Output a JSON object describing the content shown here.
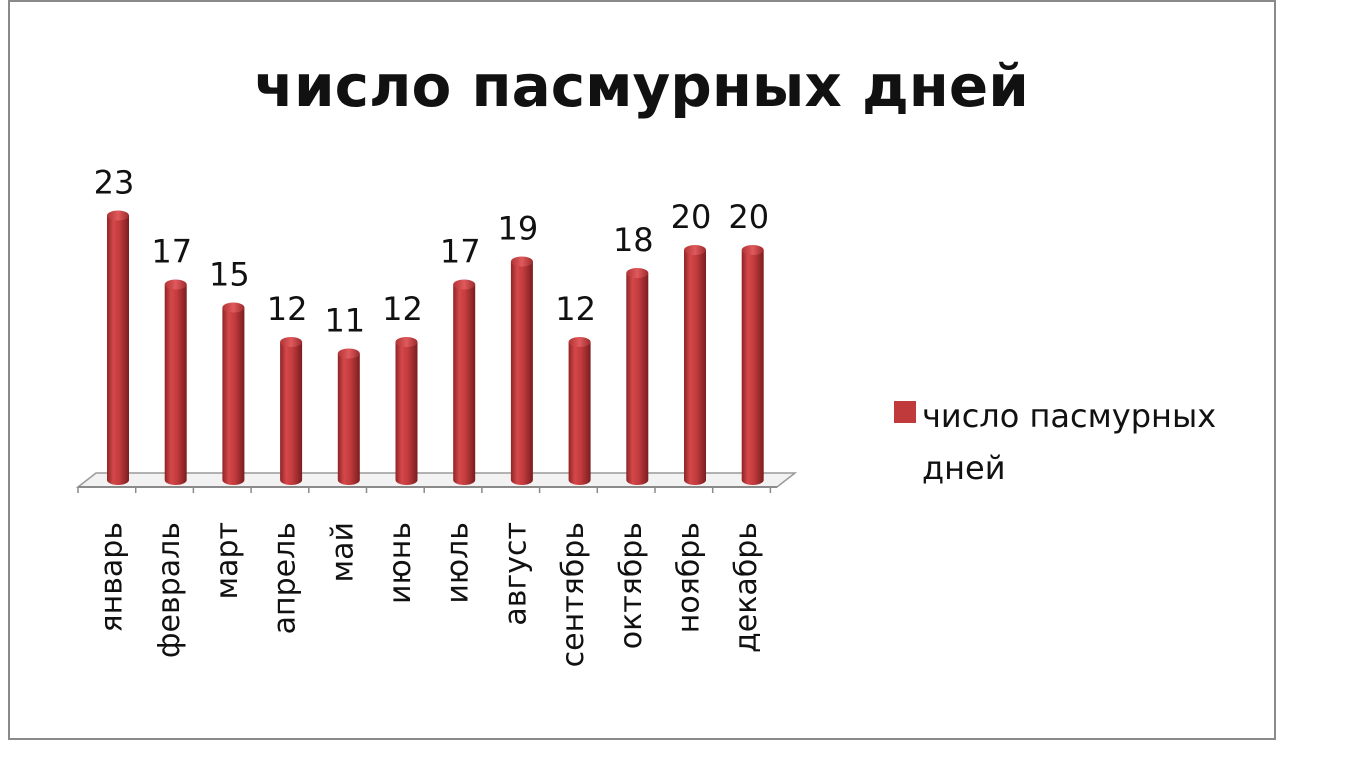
{
  "chart_data": {
    "type": "bar",
    "title": "число пасмурных дней",
    "categories": [
      "январь",
      "февраль",
      "март",
      "апрель",
      "май",
      "июнь",
      "июль",
      "август",
      "сентябрь",
      "октябрь",
      "ноябрь",
      "декабрь"
    ],
    "series": [
      {
        "name": "число пасмурных дней",
        "values": [
          23,
          17,
          15,
          12,
          11,
          12,
          17,
          19,
          12,
          18,
          20,
          20
        ],
        "color": "#c0393b"
      }
    ],
    "data_labels": true,
    "legend_position": "right",
    "grid": false,
    "style": "3d-cylinder",
    "ylim": [
      0,
      23
    ]
  }
}
